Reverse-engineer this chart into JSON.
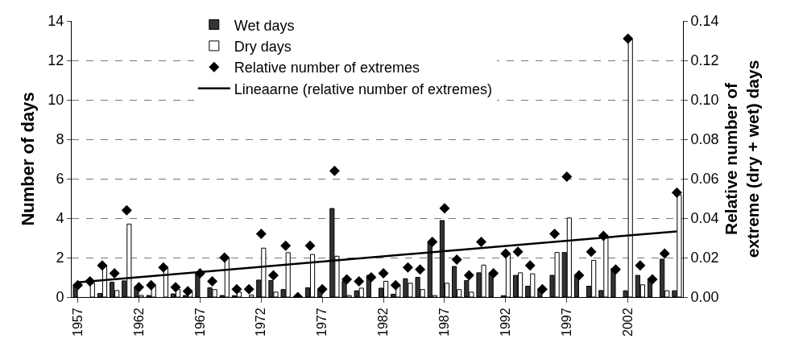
{
  "chart_data": {
    "type": "bar",
    "ylabel": "Number of days",
    "y2label": "Relative number of\nextreme (dry + wet) days",
    "categories": [
      "1957",
      null,
      null,
      null,
      null,
      "1962",
      null,
      null,
      null,
      null,
      "1967",
      null,
      null,
      null,
      null,
      "1972",
      null,
      null,
      null,
      null,
      "1977",
      null,
      null,
      null,
      null,
      "1982",
      null,
      null,
      null,
      null,
      "1987",
      null,
      null,
      null,
      null,
      "1992",
      null,
      null,
      null,
      null,
      "1997",
      null,
      null,
      null,
      null,
      "2002",
      null,
      null,
      null,
      null
    ],
    "series": [
      {
        "name": "Wet days",
        "color": "#333333",
        "values": [
          0.63,
          0,
          0.18,
          0.75,
          0.82,
          0.5,
          0.08,
          0,
          0.16,
          0.08,
          1.2,
          0.47,
          0.08,
          0.07,
          0,
          0.86,
          0.84,
          0.38,
          0,
          0.47,
          0.36,
          4.49,
          0.82,
          0.32,
          1.1,
          0.45,
          0.14,
          0.93,
          1.0,
          2.78,
          3.88,
          1.55,
          0.84,
          1.23,
          1.18,
          0.07,
          1.1,
          0.55,
          0.38,
          1.1,
          2.26,
          1.07,
          0.55,
          0.33,
          1.44,
          0.32,
          1.1,
          0.93,
          1.92,
          0.32
        ]
      },
      {
        "name": "Dry days",
        "color": "#ffffff",
        "values": [
          0,
          0.7,
          1.6,
          0.33,
          3.7,
          0.08,
          0.55,
          1.45,
          0.38,
          0.25,
          0,
          0.38,
          2.0,
          0.25,
          0.1,
          2.48,
          0.25,
          2.25,
          0,
          2.16,
          0,
          2.07,
          0.08,
          0.45,
          0,
          0.8,
          0.6,
          0.7,
          0.38,
          0.08,
          0.7,
          0.38,
          0.25,
          1.62,
          0,
          2.19,
          1.23,
          1.18,
          0,
          2.26,
          4.01,
          0,
          1.86,
          2.99,
          0,
          13.05,
          0.62,
          0,
          0.32,
          5.18
        ]
      },
      {
        "name": "Relative number of extremes",
        "type": "scatter",
        "axis": "y2",
        "color": "#000000",
        "marker": "diamond",
        "values": [
          0.006,
          0.008,
          0.016,
          0.012,
          0.044,
          0.005,
          0.006,
          0.015,
          0.005,
          0.003,
          0.012,
          0.008,
          0.02,
          0.004,
          0.004,
          0.032,
          0.011,
          0.026,
          0.0,
          0.026,
          0.004,
          0.064,
          0.009,
          0.008,
          0.01,
          0.012,
          0.006,
          0.015,
          0.014,
          0.028,
          0.045,
          0.019,
          0.011,
          0.028,
          0.012,
          0.022,
          0.023,
          0.016,
          0.004,
          0.032,
          0.061,
          0.011,
          0.023,
          0.031,
          0.014,
          0.131,
          0.016,
          0.009,
          0.022,
          0.053
        ]
      },
      {
        "name": "Lineaarne (relative number of extremes)",
        "type": "line",
        "axis": "y2",
        "color": "#000000",
        "line_style": "solid",
        "values": [
          0.0074,
          null,
          null,
          null,
          null,
          null,
          null,
          null,
          null,
          null,
          null,
          null,
          null,
          null,
          null,
          null,
          null,
          null,
          null,
          null,
          null,
          null,
          null,
          null,
          null,
          null,
          null,
          null,
          null,
          null,
          null,
          null,
          null,
          null,
          null,
          null,
          null,
          null,
          null,
          null,
          null,
          null,
          null,
          null,
          null,
          null,
          null,
          null,
          null,
          0.0333
        ]
      }
    ],
    "ylim": [
      0,
      14
    ],
    "yticks": [
      0,
      2,
      4,
      6,
      8,
      10,
      12,
      14
    ],
    "y2lim": [
      0,
      0.14
    ],
    "y2ticks": [
      {
        "value": 0,
        "label": "0.00"
      },
      {
        "value": 0.02,
        "label": "0.02"
      },
      {
        "value": 0.04,
        "label": "0.04"
      },
      {
        "value": 0.06,
        "label": "0.06"
      },
      {
        "value": 0.08,
        "label": "0.08"
      },
      {
        "value": 0.1,
        "label": "0.10"
      },
      {
        "value": 0.12,
        "label": "0.12"
      },
      {
        "value": 0.14,
        "label": "0.14"
      }
    ],
    "grid": "y",
    "legend": "top"
  }
}
